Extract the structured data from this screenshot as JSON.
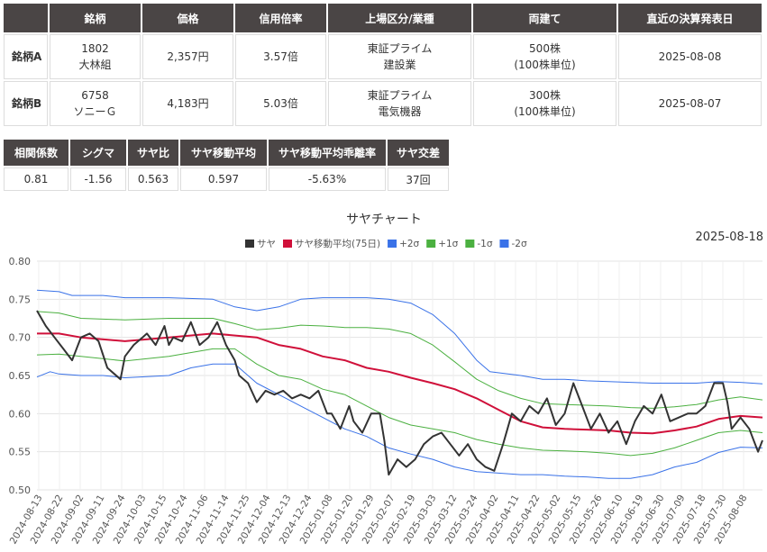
{
  "pair_table": {
    "headers": [
      "",
      "銘柄",
      "価格",
      "信用倍率",
      "上場区分/業種",
      "両建て",
      "直近の決算発表日"
    ],
    "rows": [
      {
        "label": "銘柄A",
        "code": "1802",
        "name": "大林組",
        "price": "2,357円",
        "margin_ratio": "3.57倍",
        "market": "東証プライム",
        "sector": "建設業",
        "hedge_shares": "500株",
        "hedge_unit": "(100株単位)",
        "earnings_date": "2025-08-08"
      },
      {
        "label": "銘柄B",
        "code": "6758",
        "name": "ソニーＧ",
        "price": "4,183円",
        "margin_ratio": "5.03倍",
        "market": "東証プライム",
        "sector": "電気機器",
        "hedge_shares": "300株",
        "hedge_unit": "(100株単位)",
        "earnings_date": "2025-08-07"
      }
    ]
  },
  "stats_table": {
    "headers": [
      "相関係数",
      "シグマ",
      "サヤ比",
      "サヤ移動平均",
      "サヤ移動平均乖離率",
      "サヤ交差"
    ],
    "values": [
      "0.81",
      "-1.56",
      "0.563",
      "0.597",
      "-5.63%",
      "37回"
    ]
  },
  "chart_data": {
    "type": "line",
    "title": "サヤチャート",
    "date_label": "2025-08-18",
    "ylim": [
      0.5,
      0.8
    ],
    "yticks": [
      "0.50",
      "0.55",
      "0.60",
      "0.65",
      "0.70",
      "0.75",
      "0.80"
    ],
    "grid": true,
    "legend_position": "top",
    "x_ticks": [
      "2024-08-13",
      "2024-08-22",
      "2024-09-02",
      "2024-09-11",
      "2024-09-24",
      "2024-10-03",
      "2024-10-15",
      "2024-10-24",
      "2024-11-06",
      "2024-11-14",
      "2024-11-25",
      "2024-12-04",
      "2024-12-13",
      "2024-12-24",
      "2025-01-08",
      "2025-01-20",
      "2025-01-29",
      "2025-02-07",
      "2025-02-19",
      "2025-03-03",
      "2025-03-12",
      "2025-03-24",
      "2025-04-02",
      "2025-04-11",
      "2025-04-22",
      "2025-05-02",
      "2025-05-15",
      "2025-05-26",
      "2025-06-10",
      "2025-06-19",
      "2025-06-30",
      "2025-07-09",
      "2025-07-18",
      "2025-07-30",
      "2025-08-08"
    ],
    "series": [
      {
        "name": "サヤ",
        "color": "#333333",
        "anchors": [
          [
            0,
            0.735
          ],
          [
            2,
            0.715
          ],
          [
            4,
            0.7
          ],
          [
            6,
            0.685
          ],
          [
            8,
            0.67
          ],
          [
            10,
            0.7
          ],
          [
            12,
            0.705
          ],
          [
            14,
            0.695
          ],
          [
            16,
            0.66
          ],
          [
            19,
            0.645
          ],
          [
            20,
            0.675
          ],
          [
            22,
            0.69
          ],
          [
            24,
            0.7
          ],
          [
            25,
            0.705
          ],
          [
            27,
            0.69
          ],
          [
            29,
            0.715
          ],
          [
            30,
            0.69
          ],
          [
            31,
            0.7
          ],
          [
            33,
            0.695
          ],
          [
            35,
            0.72
          ],
          [
            37,
            0.69
          ],
          [
            39,
            0.7
          ],
          [
            41,
            0.72
          ],
          [
            43,
            0.69
          ],
          [
            45,
            0.67
          ],
          [
            46,
            0.65
          ],
          [
            48,
            0.64
          ],
          [
            50,
            0.615
          ],
          [
            52,
            0.63
          ],
          [
            54,
            0.625
          ],
          [
            56,
            0.63
          ],
          [
            58,
            0.62
          ],
          [
            60,
            0.625
          ],
          [
            62,
            0.62
          ],
          [
            64,
            0.63
          ],
          [
            66,
            0.6
          ],
          [
            67,
            0.6
          ],
          [
            69,
            0.58
          ],
          [
            71,
            0.61
          ],
          [
            72,
            0.59
          ],
          [
            74,
            0.575
          ],
          [
            76,
            0.6
          ],
          [
            78,
            0.6
          ],
          [
            79,
            0.565
          ],
          [
            80,
            0.52
          ],
          [
            82,
            0.54
          ],
          [
            84,
            0.53
          ],
          [
            86,
            0.54
          ],
          [
            88,
            0.56
          ],
          [
            90,
            0.57
          ],
          [
            92,
            0.575
          ],
          [
            94,
            0.56
          ],
          [
            96,
            0.545
          ],
          [
            98,
            0.56
          ],
          [
            100,
            0.54
          ],
          [
            102,
            0.53
          ],
          [
            104,
            0.525
          ],
          [
            106,
            0.56
          ],
          [
            108,
            0.6
          ],
          [
            110,
            0.59
          ],
          [
            112,
            0.61
          ],
          [
            114,
            0.6
          ],
          [
            116,
            0.62
          ],
          [
            118,
            0.585
          ],
          [
            120,
            0.6
          ],
          [
            122,
            0.64
          ],
          [
            124,
            0.61
          ],
          [
            126,
            0.58
          ],
          [
            128,
            0.6
          ],
          [
            130,
            0.575
          ],
          [
            132,
            0.59
          ],
          [
            134,
            0.56
          ],
          [
            136,
            0.59
          ],
          [
            138,
            0.61
          ],
          [
            140,
            0.6
          ],
          [
            142,
            0.625
          ],
          [
            144,
            0.59
          ],
          [
            146,
            0.595
          ],
          [
            148,
            0.6
          ],
          [
            150,
            0.6
          ],
          [
            152,
            0.61
          ],
          [
            154,
            0.64
          ],
          [
            156,
            0.64
          ],
          [
            157,
            0.615
          ],
          [
            158,
            0.58
          ],
          [
            160,
            0.595
          ],
          [
            162,
            0.58
          ],
          [
            163,
            0.565
          ],
          [
            164,
            0.55
          ],
          [
            165,
            0.565
          ]
        ]
      },
      {
        "name": "サヤ移動平均(75日)",
        "color": "#d0103a",
        "anchors": [
          [
            0,
            0.705
          ],
          [
            5,
            0.705
          ],
          [
            10,
            0.7
          ],
          [
            20,
            0.695
          ],
          [
            30,
            0.7
          ],
          [
            40,
            0.705
          ],
          [
            50,
            0.7
          ],
          [
            55,
            0.69
          ],
          [
            60,
            0.685
          ],
          [
            65,
            0.675
          ],
          [
            70,
            0.67
          ],
          [
            75,
            0.66
          ],
          [
            80,
            0.655
          ],
          [
            85,
            0.647
          ],
          [
            90,
            0.64
          ],
          [
            95,
            0.632
          ],
          [
            100,
            0.62
          ],
          [
            105,
            0.605
          ],
          [
            110,
            0.59
          ],
          [
            115,
            0.582
          ],
          [
            120,
            0.58
          ],
          [
            125,
            0.579
          ],
          [
            130,
            0.578
          ],
          [
            135,
            0.575
          ],
          [
            140,
            0.574
          ],
          [
            145,
            0.578
          ],
          [
            150,
            0.583
          ],
          [
            155,
            0.593
          ],
          [
            160,
            0.597
          ],
          [
            165,
            0.595
          ]
        ]
      },
      {
        "name": "+2σ",
        "color": "#3a72e8",
        "anchors": [
          [
            0,
            0.762
          ],
          [
            5,
            0.76
          ],
          [
            8,
            0.755
          ],
          [
            15,
            0.755
          ],
          [
            20,
            0.752
          ],
          [
            30,
            0.752
          ],
          [
            40,
            0.75
          ],
          [
            45,
            0.74
          ],
          [
            50,
            0.735
          ],
          [
            55,
            0.74
          ],
          [
            60,
            0.75
          ],
          [
            65,
            0.752
          ],
          [
            70,
            0.752
          ],
          [
            75,
            0.752
          ],
          [
            80,
            0.75
          ],
          [
            85,
            0.745
          ],
          [
            90,
            0.73
          ],
          [
            95,
            0.705
          ],
          [
            100,
            0.67
          ],
          [
            103,
            0.655
          ],
          [
            110,
            0.65
          ],
          [
            115,
            0.645
          ],
          [
            120,
            0.645
          ],
          [
            125,
            0.643
          ],
          [
            130,
            0.642
          ],
          [
            135,
            0.641
          ],
          [
            140,
            0.64
          ],
          [
            145,
            0.64
          ],
          [
            150,
            0.64
          ],
          [
            155,
            0.642
          ],
          [
            160,
            0.641
          ],
          [
            165,
            0.639
          ]
        ]
      },
      {
        "name": "+1σ",
        "color": "#4bb040",
        "anchors": [
          [
            0,
            0.734
          ],
          [
            5,
            0.732
          ],
          [
            10,
            0.725
          ],
          [
            20,
            0.723
          ],
          [
            30,
            0.725
          ],
          [
            40,
            0.725
          ],
          [
            45,
            0.718
          ],
          [
            50,
            0.71
          ],
          [
            55,
            0.712
          ],
          [
            60,
            0.716
          ],
          [
            65,
            0.715
          ],
          [
            70,
            0.713
          ],
          [
            75,
            0.713
          ],
          [
            80,
            0.711
          ],
          [
            85,
            0.705
          ],
          [
            90,
            0.69
          ],
          [
            95,
            0.668
          ],
          [
            100,
            0.645
          ],
          [
            105,
            0.63
          ],
          [
            110,
            0.62
          ],
          [
            115,
            0.613
          ],
          [
            120,
            0.612
          ],
          [
            125,
            0.611
          ],
          [
            130,
            0.61
          ],
          [
            135,
            0.608
          ],
          [
            140,
            0.607
          ],
          [
            145,
            0.609
          ],
          [
            150,
            0.612
          ],
          [
            155,
            0.618
          ],
          [
            160,
            0.622
          ],
          [
            165,
            0.618
          ]
        ]
      },
      {
        "name": "-1σ",
        "color": "#4bb040",
        "anchors": [
          [
            0,
            0.677
          ],
          [
            5,
            0.678
          ],
          [
            10,
            0.675
          ],
          [
            20,
            0.669
          ],
          [
            30,
            0.675
          ],
          [
            40,
            0.685
          ],
          [
            45,
            0.685
          ],
          [
            50,
            0.665
          ],
          [
            55,
            0.65
          ],
          [
            60,
            0.645
          ],
          [
            65,
            0.632
          ],
          [
            70,
            0.625
          ],
          [
            75,
            0.61
          ],
          [
            80,
            0.595
          ],
          [
            85,
            0.585
          ],
          [
            90,
            0.58
          ],
          [
            95,
            0.575
          ],
          [
            100,
            0.566
          ],
          [
            105,
            0.56
          ],
          [
            110,
            0.555
          ],
          [
            115,
            0.552
          ],
          [
            120,
            0.551
          ],
          [
            125,
            0.55
          ],
          [
            130,
            0.548
          ],
          [
            135,
            0.545
          ],
          [
            140,
            0.548
          ],
          [
            145,
            0.555
          ],
          [
            150,
            0.565
          ],
          [
            155,
            0.575
          ],
          [
            160,
            0.578
          ],
          [
            165,
            0.575
          ]
        ]
      },
      {
        "name": "-2σ",
        "color": "#3a72e8",
        "anchors": [
          [
            0,
            0.648
          ],
          [
            3,
            0.655
          ],
          [
            5,
            0.652
          ],
          [
            10,
            0.65
          ],
          [
            15,
            0.65
          ],
          [
            20,
            0.647
          ],
          [
            30,
            0.65
          ],
          [
            35,
            0.66
          ],
          [
            40,
            0.665
          ],
          [
            45,
            0.665
          ],
          [
            50,
            0.64
          ],
          [
            55,
            0.625
          ],
          [
            60,
            0.61
          ],
          [
            65,
            0.595
          ],
          [
            70,
            0.58
          ],
          [
            75,
            0.57
          ],
          [
            80,
            0.555
          ],
          [
            85,
            0.547
          ],
          [
            90,
            0.54
          ],
          [
            95,
            0.53
          ],
          [
            100,
            0.524
          ],
          [
            105,
            0.522
          ],
          [
            110,
            0.52
          ],
          [
            115,
            0.52
          ],
          [
            120,
            0.518
          ],
          [
            125,
            0.517
          ],
          [
            130,
            0.515
          ],
          [
            135,
            0.515
          ],
          [
            140,
            0.52
          ],
          [
            145,
            0.53
          ],
          [
            150,
            0.536
          ],
          [
            155,
            0.549
          ],
          [
            160,
            0.556
          ],
          [
            165,
            0.555
          ]
        ]
      }
    ],
    "x_count": 166
  }
}
